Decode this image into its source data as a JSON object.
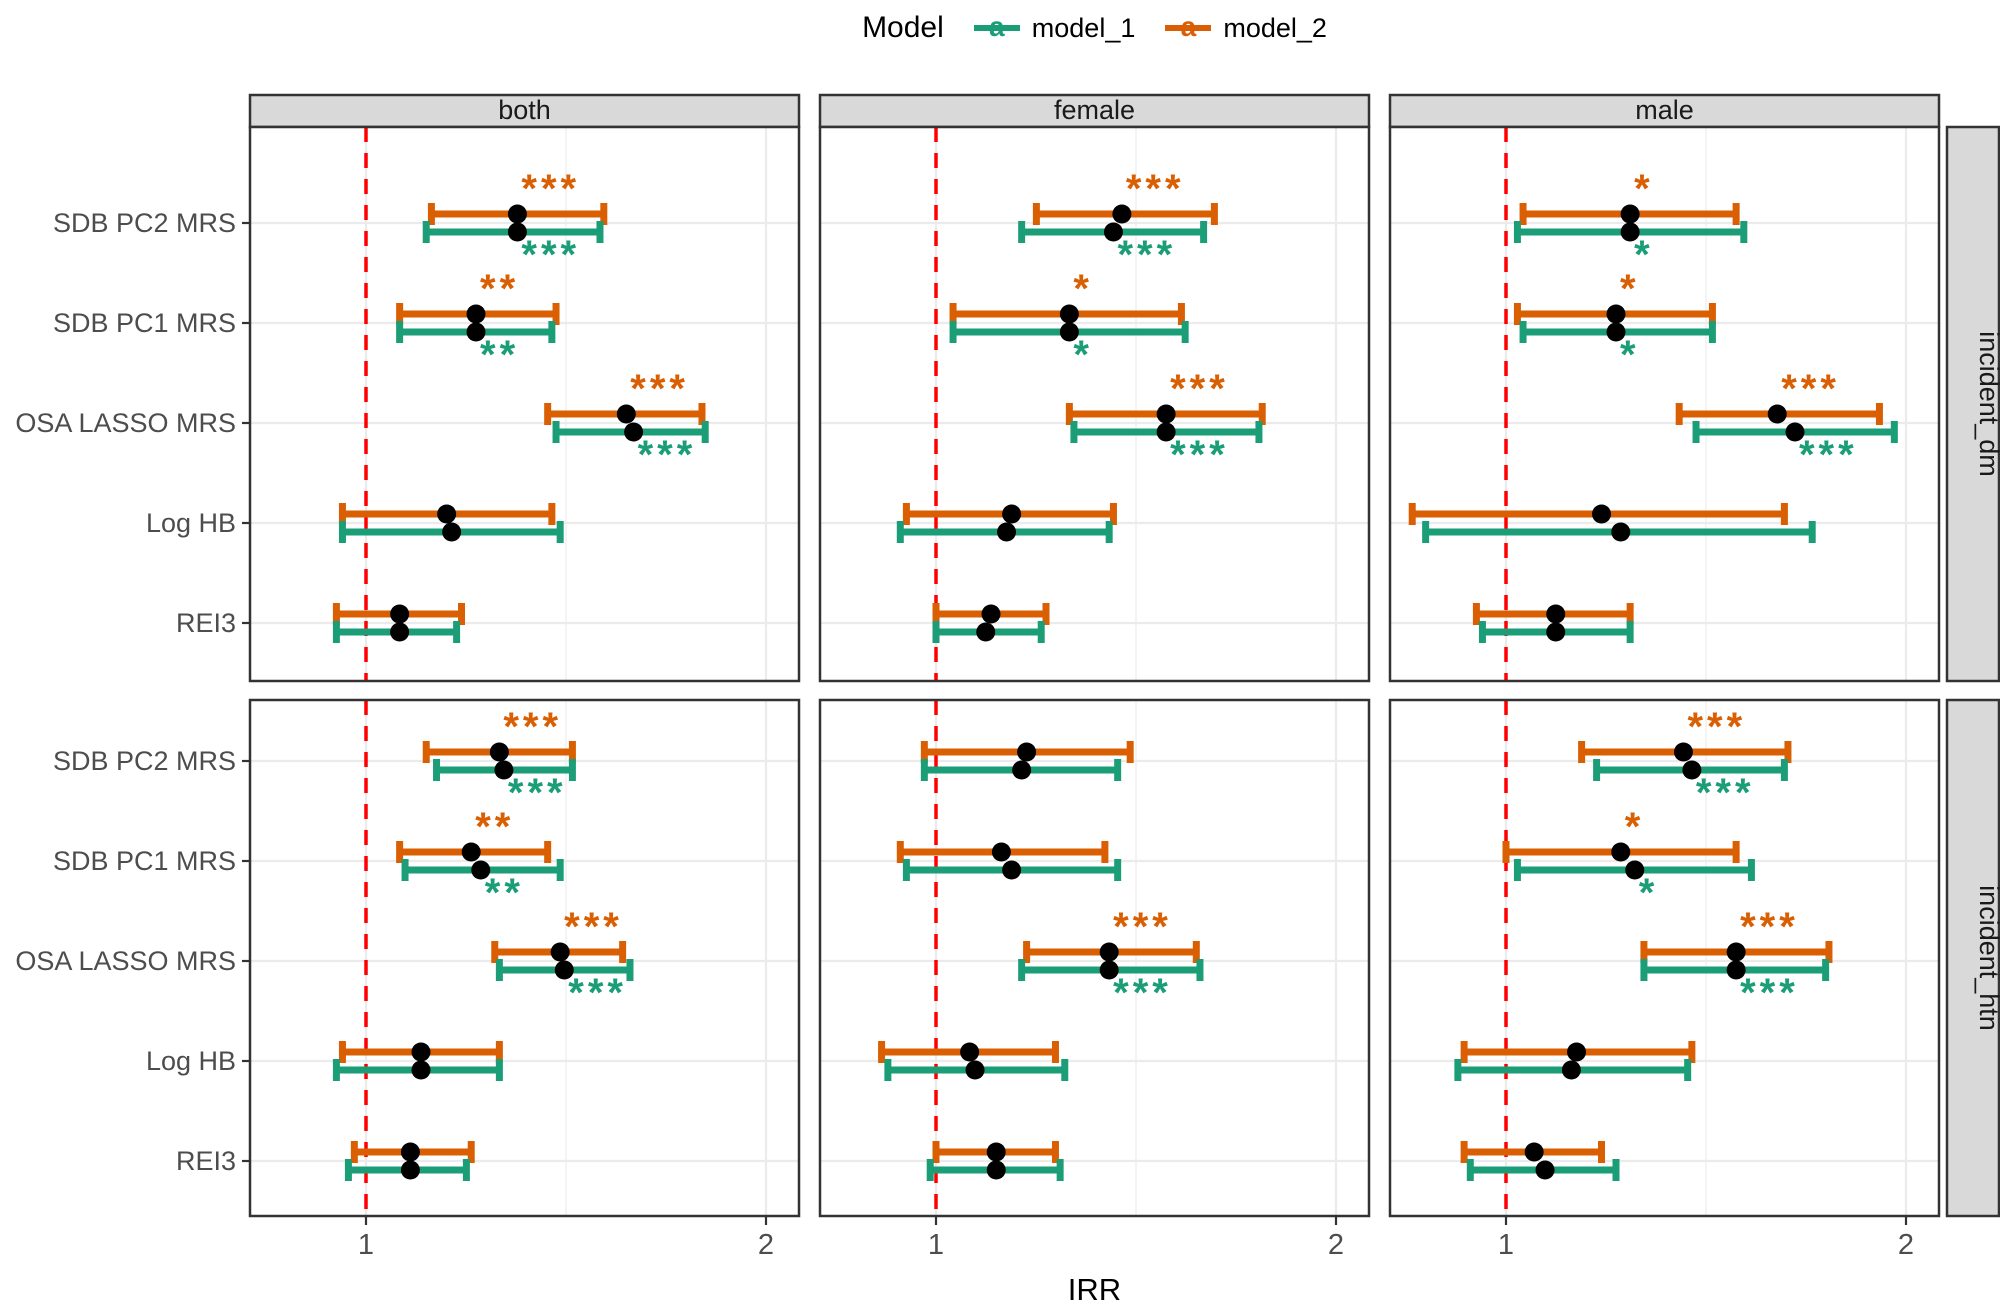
{
  "legend": {
    "title": "Model",
    "items": [
      {
        "label": "model_1",
        "color": "#1B9E77",
        "key_glyph": "a"
      },
      {
        "label": "model_2",
        "color": "#D95F02",
        "key_glyph": "a"
      }
    ]
  },
  "axes": {
    "x_title": "IRR",
    "x_tick_labels": [
      "1",
      "2"
    ],
    "y_categories": [
      "SDB PC2 MRS",
      "SDB PC1 MRS",
      "OSA LASSO MRS",
      "Log HB",
      "REI3"
    ]
  },
  "facets": {
    "columns": [
      "both",
      "female",
      "male"
    ],
    "rows": [
      "incident_dm",
      "incident_htn"
    ]
  },
  "colors": {
    "model_1": "#1B9E77",
    "model_2": "#D95F02",
    "reference_line": "#FF0000",
    "point": "#000000",
    "strip_bg": "#D9D9D9",
    "panel_border": "#333333",
    "grid_major": "#EBEBEB",
    "grid_minor": "#F1F1F1",
    "axis_text": "#4D4D4D",
    "strip_text": "#1A1A1A"
  },
  "chart_data": {
    "type": "pointrange-forest",
    "x_scale": {
      "type": "log2",
      "ticks": [
        1,
        2
      ],
      "range": [
        0.82,
        2.12
      ],
      "minor_gridline": 1.4142
    },
    "reference_line_x": 1,
    "value_format": [
      "estimate",
      "ci_low",
      "ci_high",
      "significance"
    ],
    "predictors": [
      "SDB PC2 MRS",
      "SDB PC1 MRS",
      "OSA LASSO MRS",
      "Log HB",
      "REI3"
    ],
    "panels": [
      {
        "row": "incident_dm",
        "col": "both",
        "data": {
          "SDB PC2 MRS": {
            "model_2": [
              1.3,
              1.12,
              1.51,
              "***"
            ],
            "model_1": [
              1.3,
              1.11,
              1.5,
              "***"
            ]
          },
          "SDB PC1 MRS": {
            "model_2": [
              1.21,
              1.06,
              1.39,
              "**"
            ],
            "model_1": [
              1.21,
              1.06,
              1.38,
              "**"
            ]
          },
          "OSA LASSO MRS": {
            "model_2": [
              1.57,
              1.37,
              1.79,
              "***"
            ],
            "model_1": [
              1.59,
              1.39,
              1.8,
              "***"
            ]
          },
          "Log HB": {
            "model_2": [
              1.15,
              0.96,
              1.38,
              ""
            ],
            "model_1": [
              1.16,
              0.96,
              1.4,
              ""
            ]
          },
          "REI3": {
            "model_2": [
              1.06,
              0.95,
              1.18,
              ""
            ],
            "model_1": [
              1.06,
              0.95,
              1.17,
              ""
            ]
          }
        }
      },
      {
        "row": "incident_dm",
        "col": "female",
        "data": {
          "SDB PC2 MRS": {
            "model_2": [
              1.38,
              1.19,
              1.62,
              "***"
            ],
            "model_1": [
              1.36,
              1.16,
              1.59,
              "***"
            ]
          },
          "SDB PC1 MRS": {
            "model_2": [
              1.26,
              1.03,
              1.53,
              "*"
            ],
            "model_1": [
              1.26,
              1.03,
              1.54,
              "*"
            ]
          },
          "OSA LASSO MRS": {
            "model_2": [
              1.49,
              1.26,
              1.76,
              "***"
            ],
            "model_1": [
              1.49,
              1.27,
              1.75,
              "***"
            ]
          },
          "Log HB": {
            "model_2": [
              1.14,
              0.95,
              1.36,
              ""
            ],
            "model_1": [
              1.13,
              0.94,
              1.35,
              ""
            ]
          },
          "REI3": {
            "model_2": [
              1.1,
              1.0,
              1.21,
              ""
            ],
            "model_1": [
              1.09,
              1.0,
              1.2,
              ""
            ]
          }
        }
      },
      {
        "row": "incident_dm",
        "col": "male",
        "data": {
          "SDB PC2 MRS": {
            "model_2": [
              1.24,
              1.03,
              1.49,
              "*"
            ],
            "model_1": [
              1.24,
              1.02,
              1.51,
              "*"
            ]
          },
          "SDB PC1 MRS": {
            "model_2": [
              1.21,
              1.02,
              1.43,
              "*"
            ],
            "model_1": [
              1.21,
              1.03,
              1.43,
              "*"
            ]
          },
          "OSA LASSO MRS": {
            "model_2": [
              1.6,
              1.35,
              1.91,
              "***"
            ],
            "model_1": [
              1.65,
              1.39,
              1.96,
              "***"
            ]
          },
          "Log HB": {
            "model_2": [
              1.18,
              0.85,
              1.62,
              ""
            ],
            "model_1": [
              1.22,
              0.87,
              1.7,
              ""
            ]
          },
          "REI3": {
            "model_2": [
              1.09,
              0.95,
              1.24,
              ""
            ],
            "model_1": [
              1.09,
              0.96,
              1.24,
              ""
            ]
          }
        }
      },
      {
        "row": "incident_htn",
        "col": "both",
        "data": {
          "SDB PC2 MRS": {
            "model_2": [
              1.26,
              1.11,
              1.43,
              "***"
            ],
            "model_1": [
              1.27,
              1.13,
              1.43,
              "***"
            ]
          },
          "SDB PC1 MRS": {
            "model_2": [
              1.2,
              1.06,
              1.37,
              "**"
            ],
            "model_1": [
              1.22,
              1.07,
              1.4,
              "**"
            ]
          },
          "OSA LASSO MRS": {
            "model_2": [
              1.4,
              1.25,
              1.56,
              "***"
            ],
            "model_1": [
              1.41,
              1.26,
              1.58,
              "***"
            ]
          },
          "Log HB": {
            "model_2": [
              1.1,
              0.96,
              1.26,
              ""
            ],
            "model_1": [
              1.1,
              0.95,
              1.26,
              ""
            ]
          },
          "REI3": {
            "model_2": [
              1.08,
              0.98,
              1.2,
              ""
            ],
            "model_1": [
              1.08,
              0.97,
              1.19,
              ""
            ]
          }
        }
      },
      {
        "row": "incident_htn",
        "col": "female",
        "data": {
          "SDB PC2 MRS": {
            "model_2": [
              1.17,
              0.98,
              1.4,
              ""
            ],
            "model_1": [
              1.16,
              0.98,
              1.37,
              ""
            ]
          },
          "SDB PC1 MRS": {
            "model_2": [
              1.12,
              0.94,
              1.34,
              ""
            ],
            "model_1": [
              1.14,
              0.95,
              1.37,
              ""
            ]
          },
          "OSA LASSO MRS": {
            "model_2": [
              1.35,
              1.17,
              1.57,
              "***"
            ],
            "model_1": [
              1.35,
              1.16,
              1.58,
              "***"
            ]
          },
          "Log HB": {
            "model_2": [
              1.06,
              0.91,
              1.23,
              ""
            ],
            "model_1": [
              1.07,
              0.92,
              1.25,
              ""
            ]
          },
          "REI3": {
            "model_2": [
              1.11,
              1.0,
              1.23,
              ""
            ],
            "model_1": [
              1.11,
              0.99,
              1.24,
              ""
            ]
          }
        }
      },
      {
        "row": "incident_htn",
        "col": "male",
        "data": {
          "SDB PC2 MRS": {
            "model_2": [
              1.36,
              1.14,
              1.63,
              "***"
            ],
            "model_1": [
              1.38,
              1.17,
              1.62,
              "***"
            ]
          },
          "SDB PC1 MRS": {
            "model_2": [
              1.22,
              1.0,
              1.49,
              "*"
            ],
            "model_1": [
              1.25,
              1.02,
              1.53,
              "*"
            ]
          },
          "OSA LASSO MRS": {
            "model_2": [
              1.49,
              1.27,
              1.75,
              "***"
            ],
            "model_1": [
              1.49,
              1.27,
              1.74,
              "***"
            ]
          },
          "Log HB": {
            "model_2": [
              1.13,
              0.93,
              1.38,
              ""
            ],
            "model_1": [
              1.12,
              0.92,
              1.37,
              ""
            ]
          },
          "REI3": {
            "model_2": [
              1.05,
              0.93,
              1.18,
              ""
            ],
            "model_1": [
              1.07,
              0.94,
              1.21,
              ""
            ]
          }
        }
      }
    ]
  }
}
